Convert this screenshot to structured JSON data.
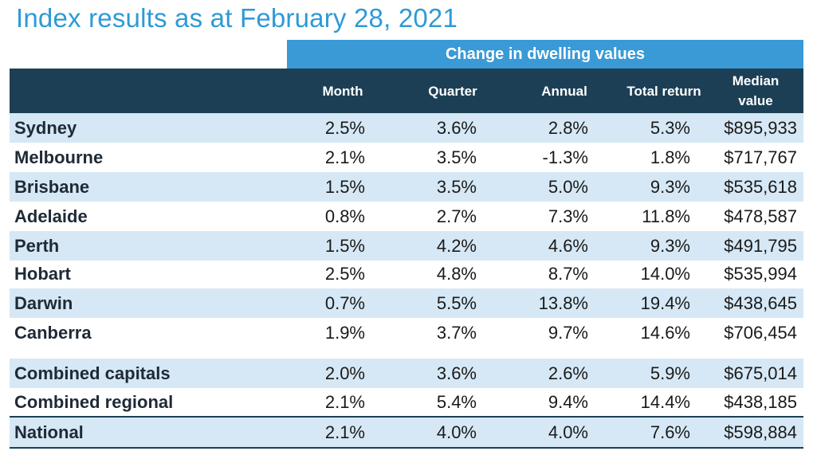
{
  "title": "Index results as at February 28, 2021",
  "group_header": "Change in dwelling values",
  "columns": {
    "month": "Month",
    "quarter": "Quarter",
    "annual": "Annual",
    "total_return": "Total return",
    "median_line1": "Median",
    "median_line2": "value"
  },
  "rows": [
    {
      "name": "Sydney",
      "month": "2.5%",
      "quarter": "3.6%",
      "annual": "2.8%",
      "total_return": "5.3%",
      "median": "$895,933"
    },
    {
      "name": "Melbourne",
      "month": "2.1%",
      "quarter": "3.5%",
      "annual": "-1.3%",
      "total_return": "1.8%",
      "median": "$717,767"
    },
    {
      "name": "Brisbane",
      "month": "1.5%",
      "quarter": "3.5%",
      "annual": "5.0%",
      "total_return": "9.3%",
      "median": "$535,618"
    },
    {
      "name": "Adelaide",
      "month": "0.8%",
      "quarter": "2.7%",
      "annual": "7.3%",
      "total_return": "11.8%",
      "median": "$478,587"
    },
    {
      "name": "Perth",
      "month": "1.5%",
      "quarter": "4.2%",
      "annual": "4.6%",
      "total_return": "9.3%",
      "median": "$491,795"
    },
    {
      "name": "Hobart",
      "month": "2.5%",
      "quarter": "4.8%",
      "annual": "8.7%",
      "total_return": "14.0%",
      "median": "$535,994"
    },
    {
      "name": "Darwin",
      "month": "0.7%",
      "quarter": "5.5%",
      "annual": "13.8%",
      "total_return": "19.4%",
      "median": "$438,645"
    },
    {
      "name": "Canberra",
      "month": "1.9%",
      "quarter": "3.7%",
      "annual": "9.7%",
      "total_return": "14.6%",
      "median": "$706,454"
    },
    {
      "name": "Combined capitals",
      "month": "2.0%",
      "quarter": "3.6%",
      "annual": "2.6%",
      "total_return": "5.9%",
      "median": "$675,014"
    },
    {
      "name": "Combined regional",
      "month": "2.1%",
      "quarter": "5.4%",
      "annual": "9.4%",
      "total_return": "14.4%",
      "median": "$438,185"
    },
    {
      "name": "National",
      "month": "2.1%",
      "quarter": "4.0%",
      "annual": "4.0%",
      "total_return": "7.6%",
      "median": "$598,884"
    }
  ],
  "colors": {
    "title": "#2e9ad6",
    "group_header_bg": "#3a9ad5",
    "column_header_bg": "#1c3f55",
    "row_shade": "#d6e8f5"
  }
}
